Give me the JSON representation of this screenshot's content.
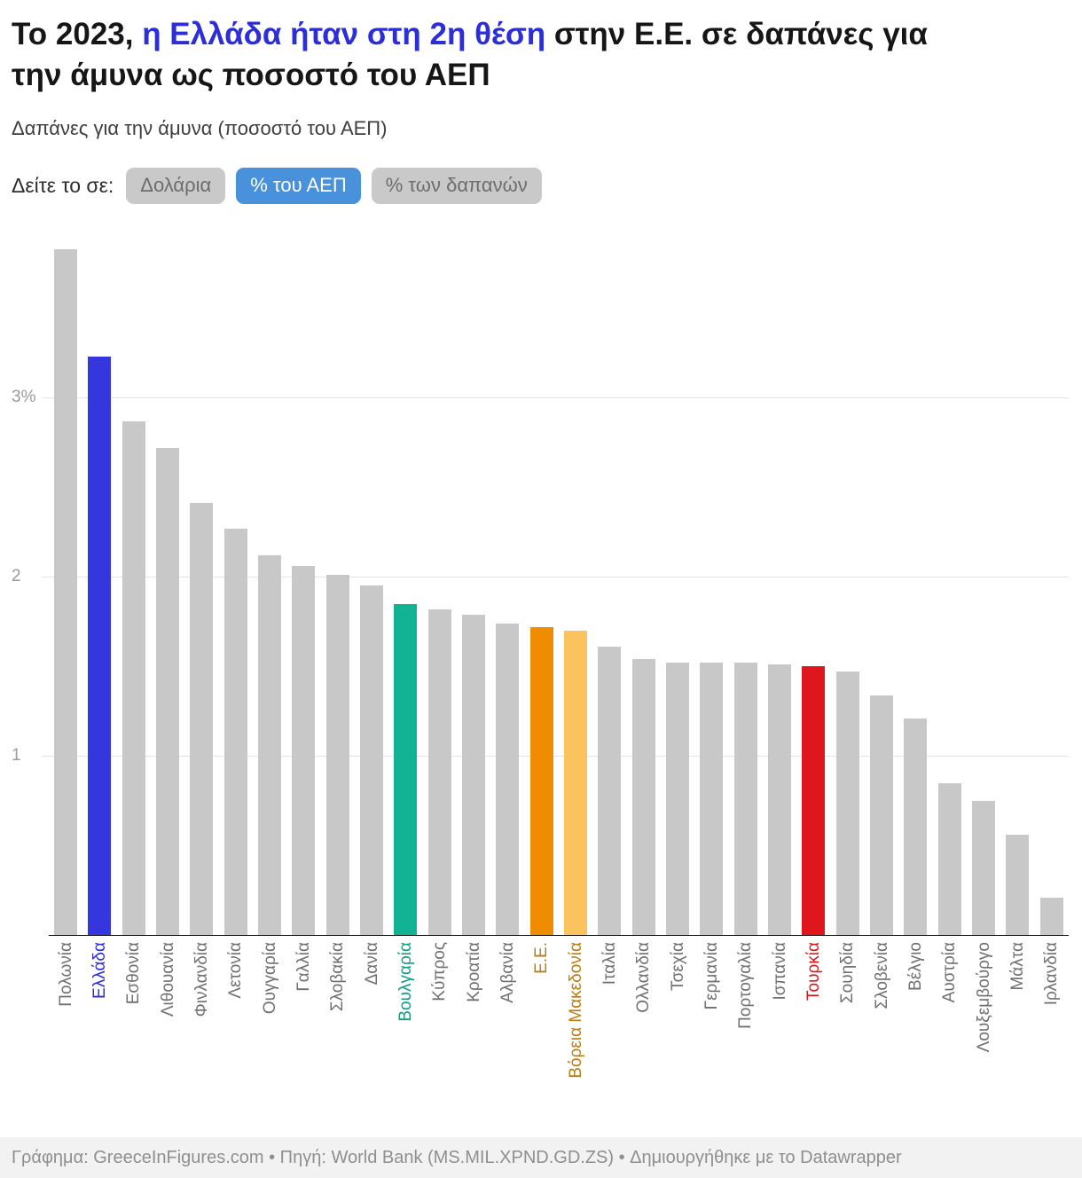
{
  "header": {
    "title_pre": "Το 2023, ",
    "title_highlight": "η Ελλάδα ήταν στη 2η θέση",
    "title_post": " στην Ε.Ε. σε δαπάνες για την άμυνα ως ποσοστό του ΑΕΠ",
    "subtitle": "Δαπάνες για την άμυνα (ποσοστό του ΑΕΠ)"
  },
  "controls": {
    "label": "Δείτε το σε:",
    "buttons": [
      {
        "label": "Δολάρια",
        "active": false
      },
      {
        "label": "% του ΑΕΠ",
        "active": true
      },
      {
        "label": "% των δαπανών",
        "active": false
      }
    ],
    "active_color": "#4a91dc",
    "inactive_color": "#c9c9c9"
  },
  "chart_data": {
    "type": "bar",
    "title": "Δαπάνες για την άμυνα (ποσοστό του ΑΕΠ), 2023",
    "unit": "% του ΑΕΠ",
    "categories": [
      "Πολωνία",
      "Ελλάδα",
      "Εσθονία",
      "Λιθουανία",
      "Φινλανδία",
      "Λετονία",
      "Ουγγαρία",
      "Γαλλία",
      "Σλοβακία",
      "Δανία",
      "Βουλγαρία",
      "Κύπρος",
      "Κροατία",
      "Αλβανία",
      "Ε.Ε.",
      "Βόρεια Μακεδονία",
      "Ιταλία",
      "Ολλανδία",
      "Τσεχία",
      "Γερμανία",
      "Πορτογαλία",
      "Ισπανία",
      "Τουρκία",
      "Σουηδία",
      "Σλοβενία",
      "Βέλγιο",
      "Αυστρία",
      "Λουξεμβούργο",
      "Μάλτα",
      "Ιρλανδία"
    ],
    "values": [
      3.83,
      3.23,
      2.87,
      2.72,
      2.41,
      2.27,
      2.12,
      2.06,
      2.01,
      1.95,
      1.85,
      1.82,
      1.79,
      1.74,
      1.72,
      1.7,
      1.61,
      1.54,
      1.52,
      1.52,
      1.52,
      1.51,
      1.5,
      1.47,
      1.34,
      1.21,
      0.85,
      0.75,
      0.56,
      0.21
    ],
    "xlabel": "",
    "ylabel": "",
    "ylim": [
      0,
      3.93
    ],
    "yticks": [
      {
        "value": 1,
        "label": "1"
      },
      {
        "value": 2,
        "label": "2"
      },
      {
        "value": 3,
        "label": "3%"
      }
    ],
    "grid": true,
    "legend": "none",
    "default_bar_color": "#c8c8c8",
    "default_label_color": "#707070",
    "bar_colors": {
      "1": "#3437de",
      "10": "#12b394",
      "14": "#f08c00",
      "15": "#fbc35e",
      "22": "#e0161e"
    },
    "label_colors": {
      "1": "#2c2ed7",
      "10": "#0f9e85",
      "14": "#bc7c10",
      "15": "#bc7c10",
      "22": "#d6191c"
    }
  },
  "footer": {
    "text": "Γράφημα: GreeceInFigures.com • Πηγή: World Bank (MS.MIL.XPND.GD.ZS) • Δημιουργήθηκε με το Datawrapper"
  }
}
